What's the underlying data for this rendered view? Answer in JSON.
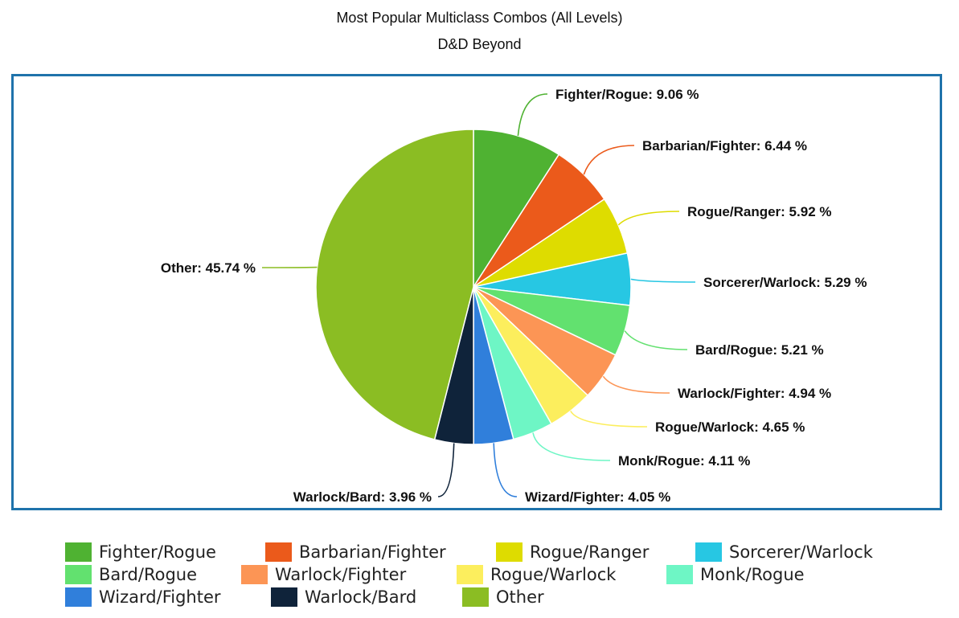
{
  "chart_data": {
    "type": "pie",
    "title": "Most Popular Multiclass Combos (All Levels)",
    "subtitle": "D&D Beyond",
    "unit": "%",
    "legend_position": "bottom",
    "slices": [
      {
        "name": "Fighter/Rogue",
        "value": 9.06,
        "label": "Fighter/Rogue: 9.06 %",
        "color": "#4fb232"
      },
      {
        "name": "Barbarian/Fighter",
        "value": 6.44,
        "label": "Barbarian/Fighter: 6.44 %",
        "color": "#eb5a1b"
      },
      {
        "name": "Rogue/Ranger",
        "value": 5.92,
        "label": "Rogue/Ranger: 5.92 %",
        "color": "#dedc00"
      },
      {
        "name": "Sorcerer/Warlock",
        "value": 5.29,
        "label": "Sorcerer/Warlock: 5.29 %",
        "color": "#27c7e3"
      },
      {
        "name": "Bard/Rogue",
        "value": 5.21,
        "label": "Bard/Rogue: 5.21 %",
        "color": "#62e16f"
      },
      {
        "name": "Warlock/Fighter",
        "value": 4.94,
        "label": "Warlock/Fighter: 4.94 %",
        "color": "#fc9555"
      },
      {
        "name": "Rogue/Warlock",
        "value": 4.65,
        "label": "Rogue/Warlock: 4.65 %",
        "color": "#fcee5d"
      },
      {
        "name": "Monk/Rogue",
        "value": 4.11,
        "label": "Monk/Rogue: 4.11 %",
        "color": "#6ef6c5"
      },
      {
        "name": "Wizard/Fighter",
        "value": 4.05,
        "label": "Wizard/Fighter: 4.05 %",
        "color": "#307fdb"
      },
      {
        "name": "Warlock/Bard",
        "value": 3.96,
        "label": "Warlock/Bard: 3.96 %",
        "color": "#0f233a"
      },
      {
        "name": "Other",
        "value": 45.74,
        "label": "Other: 45.74 %",
        "color": "#8bbd23"
      }
    ]
  }
}
